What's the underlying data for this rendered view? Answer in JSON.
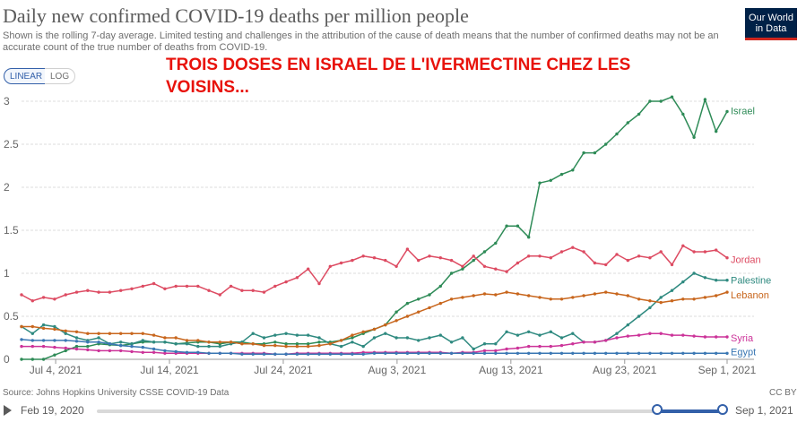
{
  "header": {
    "title": "Daily new confirmed COVID-19 deaths per million people",
    "subtitle": "Shown is the rolling 7-day average. Limited testing and challenges in the attribution of the cause of death means that the number of confirmed deaths may not be an accurate count of the true number of deaths from COVID-19.",
    "logo_line1": "Our World",
    "logo_line2": "in Data"
  },
  "controls": {
    "linear_label": "LINEAR",
    "log_label": "LOG",
    "selected": "LINEAR"
  },
  "annotation": "TROIS DOSES EN ISRAEL DE L'IVERMECTINE CHEZ LES VOISINS...",
  "footer": {
    "source": "Source: Johns Hopkins University CSSE COVID-19 Data",
    "license": "CC BY"
  },
  "timeline": {
    "start_label": "Feb 19, 2020",
    "end_label": "Sep 1, 2021"
  },
  "colors": {
    "israel": "#2e8b57",
    "jordan": "#dd4b62",
    "palestine": "#2f8a80",
    "lebanon": "#c8661d",
    "syria": "#cc3399",
    "egypt": "#3a77b3",
    "grid": "#dddddd",
    "axis_text": "#666666",
    "accent": "#3360a9",
    "annotation": "#e8120b"
  },
  "chart_data": {
    "type": "line",
    "title": "Daily new confirmed COVID-19 deaths per million people",
    "xlabel": "",
    "ylabel": "",
    "ylim": [
      0,
      3
    ],
    "yticks": [
      0,
      0.5,
      1,
      1.5,
      2,
      2.5,
      3
    ],
    "ytick_labels": [
      "0",
      "0.5",
      "1",
      "1.5",
      "2",
      "2.5",
      "3"
    ],
    "x_start": "Jul 1, 2021",
    "x_end": "Sep 1, 2021",
    "x_days": 62,
    "xticks": [
      {
        "day": 3,
        "label": "Jul 4, 2021"
      },
      {
        "day": 13,
        "label": "Jul 14, 2021"
      },
      {
        "day": 23,
        "label": "Jul 24, 2021"
      },
      {
        "day": 33,
        "label": "Aug 3, 2021"
      },
      {
        "day": 43,
        "label": "Aug 13, 2021"
      },
      {
        "day": 53,
        "label": "Aug 23, 2021"
      },
      {
        "day": 62,
        "label": "Sep 1, 2021"
      }
    ],
    "series": [
      {
        "name": "Israel",
        "color": "#2e8b57",
        "values": [
          0,
          0,
          0,
          0.05,
          0.1,
          0.15,
          0.15,
          0.18,
          0.17,
          0.16,
          0.18,
          0.2,
          0.2,
          0.2,
          0.18,
          0.19,
          0.2,
          0.2,
          0.18,
          0.2,
          0.2,
          0.18,
          0.18,
          0.2,
          0.18,
          0.18,
          0.18,
          0.2,
          0.2,
          0.22,
          0.25,
          0.3,
          0.35,
          0.4,
          0.55,
          0.65,
          0.7,
          0.75,
          0.85,
          1,
          1.05,
          1.15,
          1.25,
          1.35,
          1.55,
          1.55,
          1.42,
          2.05,
          2.08,
          2.15,
          2.2,
          2.4,
          2.4,
          2.5,
          2.62,
          2.75,
          2.85,
          3,
          3,
          3.05,
          2.85,
          2.58,
          3.02,
          2.65,
          2.88
        ]
      },
      {
        "name": "Jordan",
        "color": "#dd4b62",
        "values": [
          0.75,
          0.68,
          0.72,
          0.7,
          0.75,
          0.78,
          0.8,
          0.78,
          0.78,
          0.8,
          0.82,
          0.85,
          0.88,
          0.82,
          0.85,
          0.85,
          0.85,
          0.8,
          0.75,
          0.85,
          0.8,
          0.8,
          0.78,
          0.85,
          0.9,
          0.95,
          1.05,
          0.88,
          1.08,
          1.12,
          1.15,
          1.2,
          1.18,
          1.15,
          1.08,
          1.28,
          1.15,
          1.2,
          1.18,
          1.15,
          1.08,
          1.2,
          1.08,
          1.05,
          1.02,
          1.12,
          1.2,
          1.2,
          1.18,
          1.25,
          1.3,
          1.25,
          1.12,
          1.1,
          1.22,
          1.15,
          1.2,
          1.18,
          1.25,
          1.1,
          1.32,
          1.25,
          1.25,
          1.27,
          1.18
        ]
      },
      {
        "name": "Palestine",
        "color": "#2f8a80",
        "values": [
          0.38,
          0.3,
          0.4,
          0.38,
          0.3,
          0.25,
          0.22,
          0.25,
          0.18,
          0.2,
          0.18,
          0.22,
          0.2,
          0.2,
          0.18,
          0.18,
          0.15,
          0.15,
          0.15,
          0.18,
          0.2,
          0.3,
          0.25,
          0.28,
          0.3,
          0.28,
          0.28,
          0.25,
          0.18,
          0.15,
          0.2,
          0.15,
          0.25,
          0.3,
          0.25,
          0.25,
          0.22,
          0.25,
          0.28,
          0.2,
          0.25,
          0.12,
          0.18,
          0.18,
          0.32,
          0.28,
          0.32,
          0.28,
          0.32,
          0.25,
          0.3,
          0.2,
          0.2,
          0.22,
          0.3,
          0.4,
          0.5,
          0.6,
          0.72,
          0.8,
          0.9,
          1,
          0.95,
          0.92,
          0.92
        ]
      },
      {
        "name": "Lebanon",
        "color": "#c8661d",
        "values": [
          0.38,
          0.38,
          0.36,
          0.35,
          0.33,
          0.32,
          0.3,
          0.3,
          0.3,
          0.3,
          0.3,
          0.3,
          0.28,
          0.25,
          0.25,
          0.22,
          0.22,
          0.2,
          0.2,
          0.2,
          0.18,
          0.18,
          0.16,
          0.16,
          0.15,
          0.15,
          0.15,
          0.16,
          0.18,
          0.22,
          0.28,
          0.32,
          0.35,
          0.4,
          0.45,
          0.5,
          0.55,
          0.6,
          0.65,
          0.7,
          0.72,
          0.74,
          0.76,
          0.75,
          0.78,
          0.76,
          0.74,
          0.72,
          0.7,
          0.7,
          0.72,
          0.74,
          0.76,
          0.78,
          0.76,
          0.74,
          0.7,
          0.68,
          0.66,
          0.68,
          0.7,
          0.7,
          0.72,
          0.74,
          0.78
        ]
      },
      {
        "name": "Syria",
        "color": "#cc3399",
        "values": [
          0.15,
          0.15,
          0.15,
          0.14,
          0.13,
          0.12,
          0.11,
          0.1,
          0.1,
          0.1,
          0.09,
          0.08,
          0.08,
          0.07,
          0.07,
          0.07,
          0.07,
          0.07,
          0.07,
          0.07,
          0.07,
          0.07,
          0.07,
          0.06,
          0.06,
          0.07,
          0.07,
          0.07,
          0.07,
          0.07,
          0.07,
          0.08,
          0.08,
          0.08,
          0.08,
          0.08,
          0.08,
          0.08,
          0.08,
          0.07,
          0.08,
          0.08,
          0.1,
          0.1,
          0.12,
          0.13,
          0.15,
          0.15,
          0.15,
          0.16,
          0.18,
          0.2,
          0.2,
          0.22,
          0.25,
          0.27,
          0.28,
          0.3,
          0.3,
          0.28,
          0.28,
          0.27,
          0.26,
          0.26,
          0.26
        ]
      },
      {
        "name": "Egypt",
        "color": "#3a77b3",
        "values": [
          0.23,
          0.22,
          0.22,
          0.22,
          0.22,
          0.21,
          0.2,
          0.2,
          0.18,
          0.16,
          0.15,
          0.14,
          0.12,
          0.1,
          0.09,
          0.08,
          0.08,
          0.07,
          0.07,
          0.07,
          0.06,
          0.06,
          0.06,
          0.06,
          0.06,
          0.06,
          0.06,
          0.06,
          0.06,
          0.06,
          0.06,
          0.06,
          0.07,
          0.07,
          0.07,
          0.07,
          0.07,
          0.07,
          0.07,
          0.07,
          0.07,
          0.07,
          0.07,
          0.07,
          0.07,
          0.07,
          0.07,
          0.07,
          0.07,
          0.07,
          0.07,
          0.07,
          0.07,
          0.07,
          0.07,
          0.07,
          0.07,
          0.07,
          0.07,
          0.07,
          0.07,
          0.07,
          0.07,
          0.07,
          0.07
        ]
      }
    ]
  }
}
